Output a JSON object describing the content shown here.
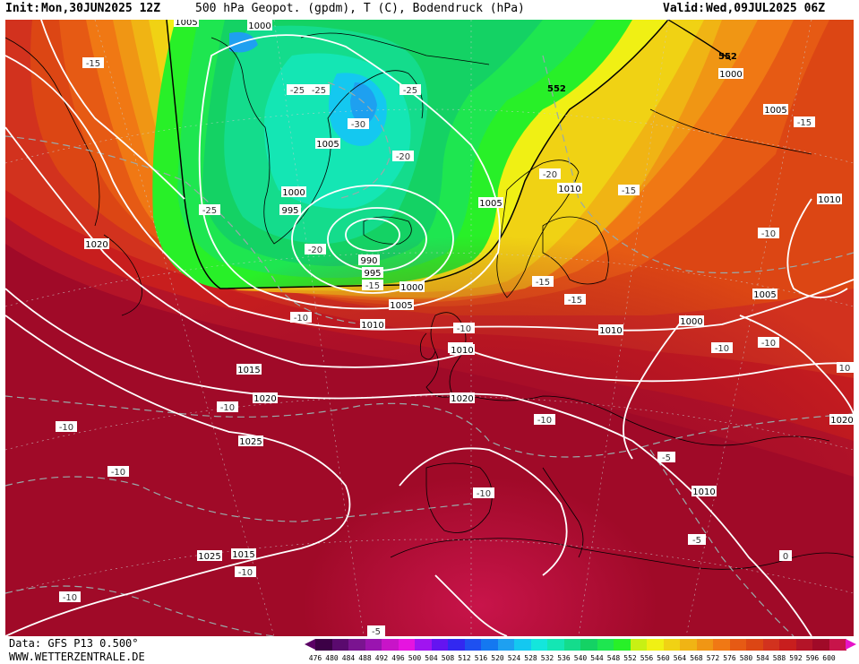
{
  "header": {
    "init_label": "Init:",
    "init_value": "Mon,30JUN2025 12Z",
    "title": "500 hPa Geopot. (gpdm), T (C), Bodendruck (hPa)",
    "valid_label": "Valid:",
    "valid_value": "Wed,09JUL2025 06Z"
  },
  "footer": {
    "data_source": "Data: GFS P13 0.500°",
    "website": "WWW.WETTERZENTRALE.DE"
  },
  "legend": {
    "values": [
      476,
      480,
      484,
      488,
      492,
      496,
      500,
      504,
      508,
      512,
      516,
      520,
      524,
      528,
      532,
      536,
      540,
      544,
      548,
      552,
      556,
      560,
      564,
      568,
      572,
      576,
      580,
      584,
      588,
      592,
      596,
      600
    ],
    "colors": [
      "#3c0046",
      "#5a0a6e",
      "#7a1490",
      "#9a14b0",
      "#c814c8",
      "#e614e0",
      "#a014f0",
      "#6414f0",
      "#3228f0",
      "#1e50f0",
      "#1478f0",
      "#1ea0f0",
      "#14c8f0",
      "#14e6dc",
      "#14e6b4",
      "#14dc8c",
      "#14d264",
      "#1ee650",
      "#28f028",
      "#c8f014",
      "#f0f014",
      "#f0d214",
      "#f0b414",
      "#f09614",
      "#f07814",
      "#e65a14",
      "#dc4614",
      "#d2321e",
      "#c81e1e",
      "#b41428",
      "#a00a28",
      "#c8144a"
    ],
    "arrow_left_color": "#5a0064",
    "arrow_right_color": "#e614c8"
  },
  "map": {
    "pressure_labels": [
      "1005",
      "1000",
      "1005",
      "1000",
      "995",
      "990",
      "995",
      "1000",
      "1005",
      "1010",
      "1015",
      "1020",
      "1025",
      "1020",
      "1015",
      "1010",
      "1005",
      "1000",
      "1010",
      "1015",
      "1020",
      "1025",
      "1010",
      "1005",
      "1010",
      "1005",
      "1000",
      "1010",
      "1020"
    ],
    "temp_labels": [
      "-15",
      "-25",
      "-25",
      "-25",
      "-30",
      "-20",
      "-20",
      "-15",
      "-25",
      "-10",
      "-10",
      "-10",
      "-10",
      "-10",
      "-10",
      "-20",
      "-15",
      "-15",
      "-15",
      "-10",
      "-15",
      "-10",
      "-10",
      "-10",
      "-10",
      "-5",
      "-5",
      "-5",
      "0",
      "-10",
      "10"
    ],
    "geopot_labels": [
      "552",
      "552"
    ]
  }
}
